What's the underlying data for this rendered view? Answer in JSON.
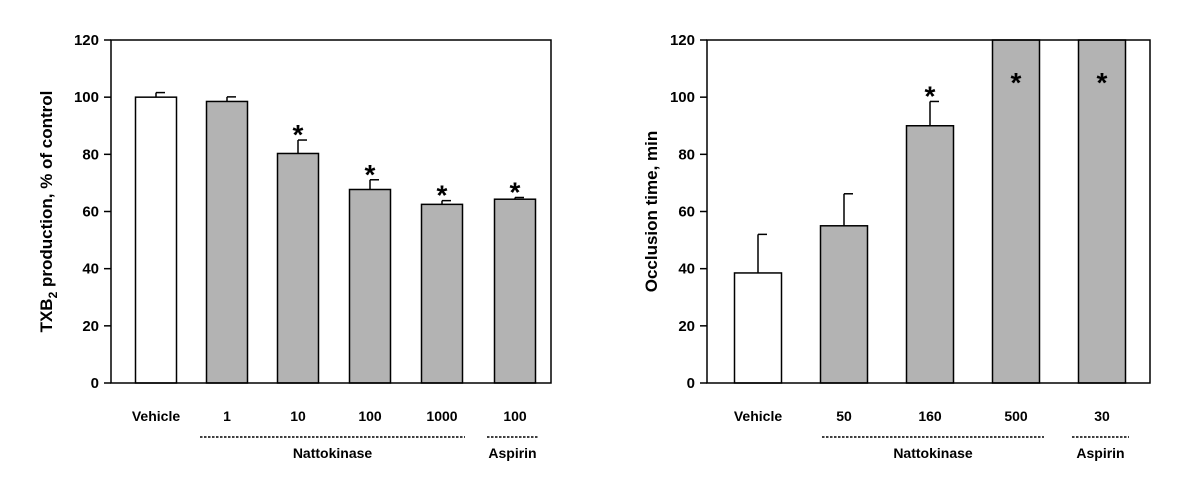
{
  "chart_data": [
    {
      "type": "bar",
      "title": "",
      "ylabel_main": "TXB",
      "ylabel_sub": "2",
      "ylabel_rest": " production, % of control",
      "xlabel": "",
      "ylim": [
        0,
        120
      ],
      "yticks": [
        0,
        20,
        40,
        60,
        80,
        100,
        120
      ],
      "categories": [
        "Vehicle",
        "1",
        "10",
        "100",
        "1000",
        "100"
      ],
      "values": [
        100,
        98.5,
        80.3,
        67.7,
        62.5,
        64.3
      ],
      "errors": [
        1.6,
        1.6,
        4.7,
        3.4,
        1.3,
        0.6
      ],
      "fills": [
        "white",
        "gray",
        "gray",
        "gray",
        "gray",
        "gray"
      ],
      "significant": [
        false,
        false,
        true,
        true,
        true,
        true
      ],
      "star_symbol": "*",
      "groups": [
        {
          "label": "Nattokinase",
          "start": 1,
          "end": 4
        },
        {
          "label": "Aspirin",
          "start": 5,
          "end": 5
        }
      ]
    },
    {
      "type": "bar",
      "title": "",
      "ylabel": "Occlusion time, min",
      "xlabel": "",
      "ylim": [
        0,
        120
      ],
      "yticks": [
        0,
        20,
        40,
        60,
        80,
        100,
        120
      ],
      "categories": [
        "Vehicle",
        "50",
        "160",
        "500",
        "30"
      ],
      "values": [
        38.5,
        55,
        90,
        120,
        120
      ],
      "errors": [
        13.5,
        11.2,
        8.5,
        0,
        0
      ],
      "fills": [
        "white",
        "gray",
        "gray",
        "gray",
        "gray"
      ],
      "significant": [
        false,
        false,
        true,
        true,
        true
      ],
      "star_symbol": "*",
      "groups": [
        {
          "label": "Nattokinase",
          "start": 1,
          "end": 3
        },
        {
          "label": "Aspirin",
          "start": 4,
          "end": 4
        }
      ]
    }
  ],
  "colors": {
    "gray_bar": "#b3b3b3",
    "white_bar": "#ffffff",
    "stroke": "#000000"
  }
}
